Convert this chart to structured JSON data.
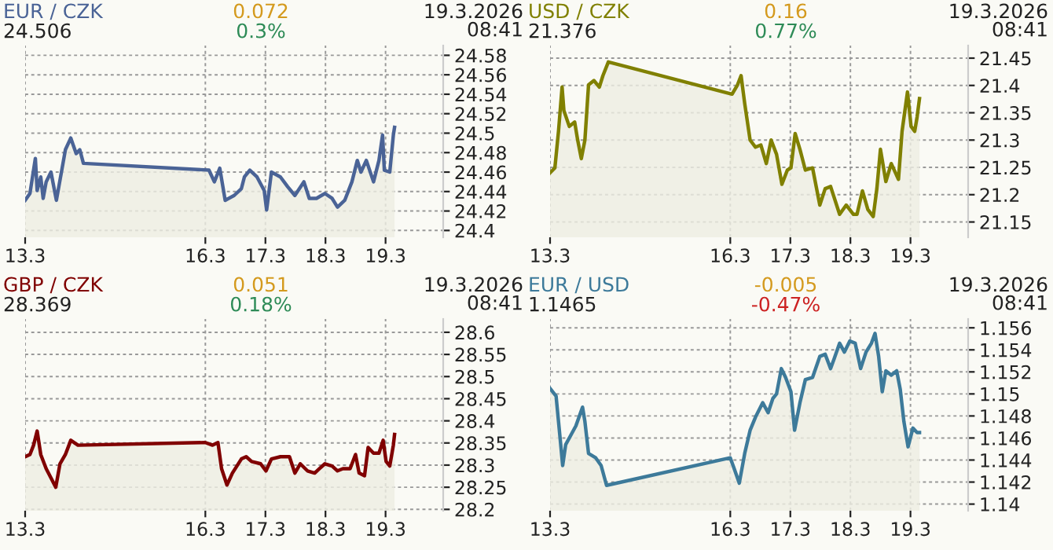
{
  "chart_data": [
    {
      "type": "area",
      "title": "EUR / CZK",
      "annotations": [
        "24.506",
        "0.072",
        "0.3%",
        "19.3.2026\n08:41"
      ],
      "grid": true,
      "xlim": [
        "2026-03-13T00:00",
        "2026-03-19T23:02"
      ],
      "xticks": [
        {
          "value": "2026-03-13",
          "label": "13.3"
        },
        {
          "value": "2026-03-16",
          "label": "16.3"
        },
        {
          "value": "2026-03-17",
          "label": "17.3"
        },
        {
          "value": "2026-03-18",
          "label": "18.3"
        },
        {
          "value": "2026-03-19",
          "label": "19.3"
        }
      ],
      "ylim": [
        24.393,
        24.59
      ],
      "yticks": [
        24.4,
        24.42,
        24.44,
        24.46,
        24.48,
        24.5,
        24.52,
        24.54,
        24.56,
        24.58
      ],
      "series": [
        {
          "color": "#4a6396",
          "x": [
            "2026-03-13T00:00",
            "2026-03-13T01:55",
            "2026-03-13T04:05",
            "2026-03-13T04:48",
            "2026-03-13T06:14",
            "2026-03-13T07:12",
            "2026-03-13T08:24",
            "2026-03-13T10:19",
            "2026-03-13T12:29",
            "2026-03-13T14:38",
            "2026-03-13T16:05",
            "2026-03-13T18:14",
            "2026-03-13T20:24",
            "2026-03-13T21:50",
            "2026-03-13T23:17",
            "2026-03-16T01:26",
            "2026-03-16T03:36",
            "2026-03-16T05:46",
            "2026-03-16T07:55",
            "2026-03-16T11:31",
            "2026-03-16T14:24",
            "2026-03-16T15:36",
            "2026-03-16T17:46",
            "2026-03-16T20:38",
            "2026-03-16T23:31",
            "2026-03-17T00:29",
            "2026-03-17T02:24",
            "2026-03-17T06:00",
            "2026-03-17T08:53",
            "2026-03-17T11:46",
            "2026-03-17T15:22",
            "2026-03-17T17:31",
            "2026-03-17T20:24",
            "2026-03-17T23:46",
            "2026-03-18T02:38",
            "2026-03-18T04:48",
            "2026-03-18T07:41",
            "2026-03-18T10:34",
            "2026-03-18T12:43",
            "2026-03-18T14:10",
            "2026-03-18T16:19",
            "2026-03-18T19:12",
            "2026-03-18T21:22",
            "2026-03-18T22:48",
            "2026-03-18T23:31",
            "2026-03-19T01:41",
            "2026-03-19T03:07",
            "2026-03-19T03:36"
          ],
          "values": [
            24.431,
            24.438,
            24.474,
            24.441,
            24.455,
            24.433,
            24.45,
            24.46,
            24.431,
            24.462,
            24.483,
            24.495,
            24.479,
            24.483,
            24.469,
            24.462,
            24.45,
            24.464,
            24.431,
            24.436,
            24.443,
            24.455,
            24.462,
            24.455,
            24.441,
            24.421,
            24.46,
            24.455,
            24.445,
            24.436,
            24.45,
            24.433,
            24.433,
            24.438,
            24.433,
            24.424,
            24.431,
            24.45,
            24.472,
            24.46,
            24.472,
            24.45,
            24.472,
            24.498,
            24.462,
            24.46,
            24.498,
            24.506
          ]
        }
      ]
    },
    {
      "type": "area",
      "title": "USD / CZK",
      "annotations": [
        "21.376",
        "0.16",
        "0.77%",
        "19.3.2026\n08:41"
      ],
      "grid": true,
      "xlim": [
        "2026-03-13T00:00",
        "2026-03-19T23:02"
      ],
      "xticks": [
        {
          "value": "2026-03-13",
          "label": "13.3"
        },
        {
          "value": "2026-03-16",
          "label": "16.3"
        },
        {
          "value": "2026-03-17",
          "label": "17.3"
        },
        {
          "value": "2026-03-18",
          "label": "18.3"
        },
        {
          "value": "2026-03-19",
          "label": "19.3"
        }
      ],
      "ylim": [
        21.122,
        21.473
      ],
      "yticks": [
        21.15,
        21.2,
        21.25,
        21.3,
        21.35,
        21.4,
        21.45
      ],
      "series": [
        {
          "color": "#808000",
          "x": [
            "2026-03-13T00:00",
            "2026-03-13T01:55",
            "2026-03-13T03:22",
            "2026-03-13T04:48",
            "2026-03-13T05:31",
            "2026-03-13T07:41",
            "2026-03-13T09:50",
            "2026-03-13T11:02",
            "2026-03-13T12:29",
            "2026-03-13T13:55",
            "2026-03-13T15:22",
            "2026-03-13T17:31",
            "2026-03-13T19:41",
            "2026-03-13T21:07",
            "2026-03-13T23:17",
            "2026-03-16T00:43",
            "2026-03-16T02:53",
            "2026-03-16T04:19",
            "2026-03-16T05:46",
            "2026-03-16T07:55",
            "2026-03-16T10:05",
            "2026-03-16T12:14",
            "2026-03-16T14:24",
            "2026-03-16T16:19",
            "2026-03-16T18:29",
            "2026-03-16T20:38",
            "2026-03-16T22:48",
            "2026-03-17T00:14",
            "2026-03-17T01:55",
            "2026-03-17T03:50",
            "2026-03-17T06:00",
            "2026-03-17T08:53",
            "2026-03-17T11:46",
            "2026-03-17T13:55",
            "2026-03-17T16:05",
            "2026-03-17T19:41",
            "2026-03-17T22:19",
            "2026-03-18T01:12",
            "2026-03-18T02:38",
            "2026-03-18T04:48",
            "2026-03-18T06:58",
            "2026-03-18T09:07",
            "2026-03-18T10:34",
            "2026-03-18T12:00",
            "2026-03-18T14:10",
            "2026-03-18T16:19",
            "2026-03-18T19:12",
            "2026-03-18T20:38",
            "2026-03-18T22:48",
            "2026-03-19T00:14",
            "2026-03-19T01:41",
            "2026-03-19T02:38",
            "2026-03-19T03:36"
          ],
          "values": [
            21.24,
            21.249,
            21.316,
            21.397,
            21.354,
            21.325,
            21.333,
            21.3,
            21.266,
            21.3,
            21.401,
            21.409,
            21.397,
            21.418,
            21.443,
            21.384,
            21.401,
            21.418,
            21.367,
            21.3,
            21.287,
            21.291,
            21.257,
            21.3,
            21.274,
            21.219,
            21.245,
            21.249,
            21.312,
            21.283,
            21.245,
            21.249,
            21.181,
            21.211,
            21.215,
            21.164,
            21.181,
            21.164,
            21.164,
            21.207,
            21.173,
            21.16,
            21.211,
            21.283,
            21.224,
            21.257,
            21.228,
            21.316,
            21.388,
            21.325,
            21.316,
            21.342,
            21.376
          ]
        }
      ]
    },
    {
      "type": "area",
      "title": "GBP / CZK",
      "annotations": [
        "28.369",
        "0.051",
        "0.18%",
        "19.3.2026\n08:41"
      ],
      "grid": true,
      "xlim": [
        "2026-03-13T00:00",
        "2026-03-19T23:02"
      ],
      "xticks": [
        {
          "value": "2026-03-13",
          "label": "13.3"
        },
        {
          "value": "2026-03-16",
          "label": "16.3"
        },
        {
          "value": "2026-03-17",
          "label": "17.3"
        },
        {
          "value": "2026-03-18",
          "label": "18.3"
        },
        {
          "value": "2026-03-19",
          "label": "19.3"
        }
      ],
      "ylim": [
        28.197,
        28.63
      ],
      "yticks": [
        28.2,
        28.25,
        28.3,
        28.35,
        28.4,
        28.45,
        28.5,
        28.55,
        28.6
      ],
      "series": [
        {
          "color": "#800000",
          "x": [
            "2026-03-13T00:00",
            "2026-03-13T01:55",
            "2026-03-13T03:22",
            "2026-03-13T04:48",
            "2026-03-13T06:14",
            "2026-03-13T08:24",
            "2026-03-13T10:19",
            "2026-03-13T12:14",
            "2026-03-13T13:55",
            "2026-03-13T16:05",
            "2026-03-13T18:14",
            "2026-03-13T21:07",
            "2026-03-16T00:00",
            "2026-03-16T02:53",
            "2026-03-16T05:02",
            "2026-03-16T06:29",
            "2026-03-16T08:38",
            "2026-03-16T10:48",
            "2026-03-16T14:24",
            "2026-03-16T16:19",
            "2026-03-16T18:29",
            "2026-03-16T22:05",
            "2026-03-17T00:14",
            "2026-03-17T02:24",
            "2026-03-17T06:00",
            "2026-03-17T09:36",
            "2026-03-17T11:46",
            "2026-03-17T13:55",
            "2026-03-17T16:48",
            "2026-03-17T19:41",
            "2026-03-17T21:36",
            "2026-03-17T23:46",
            "2026-03-18T02:38",
            "2026-03-18T04:48",
            "2026-03-18T06:58",
            "2026-03-18T09:50",
            "2026-03-18T12:00",
            "2026-03-18T13:26",
            "2026-03-18T15:36",
            "2026-03-18T17:02",
            "2026-03-18T19:12",
            "2026-03-18T21:22",
            "2026-03-18T23:02",
            "2026-03-19T00:14",
            "2026-03-19T01:41",
            "2026-03-19T03:07",
            "2026-03-19T03:36"
          ],
          "values": [
            28.319,
            28.324,
            28.345,
            28.377,
            28.324,
            28.292,
            28.271,
            28.25,
            28.303,
            28.324,
            28.356,
            28.345,
            28.351,
            28.345,
            28.351,
            28.292,
            28.255,
            28.282,
            28.314,
            28.319,
            28.308,
            28.303,
            28.287,
            28.314,
            28.319,
            28.319,
            28.282,
            28.303,
            28.287,
            28.282,
            28.292,
            28.303,
            28.298,
            28.287,
            28.292,
            28.292,
            28.324,
            28.282,
            28.276,
            28.34,
            28.327,
            28.327,
            28.356,
            28.308,
            28.298,
            28.345,
            28.369
          ]
        }
      ]
    },
    {
      "type": "area",
      "title": "EUR / USD",
      "annotations": [
        "1.1465",
        "-0.005",
        "-0.47%",
        "19.3.2026\n08:41"
      ],
      "grid": true,
      "xlim": [
        "2026-03-13T00:00",
        "2026-03-19T23:02"
      ],
      "xticks": [
        {
          "value": "2026-03-13",
          "label": "13.3"
        },
        {
          "value": "2026-03-16",
          "label": "16.3"
        },
        {
          "value": "2026-03-17",
          "label": "17.3"
        },
        {
          "value": "2026-03-18",
          "label": "18.3"
        },
        {
          "value": "2026-03-19",
          "label": "19.3"
        }
      ],
      "ylim": [
        1.1394,
        1.1568
      ],
      "yticks": [
        1.14,
        1.142,
        1.144,
        1.146,
        1.148,
        1.15,
        1.152,
        1.154,
        1.156
      ],
      "series": [
        {
          "color": "#3d7a9a",
          "x": [
            "2026-03-13T00:00",
            "2026-03-13T02:24",
            "2026-03-13T04:05",
            "2026-03-13T05:02",
            "2026-03-13T06:14",
            "2026-03-13T08:24",
            "2026-03-13T10:19",
            "2026-03-13T12:58",
            "2026-03-13T13:55",
            "2026-03-13T15:22",
            "2026-03-13T18:14",
            "2026-03-13T20:24",
            "2026-03-13T22:34",
            "2026-03-16T00:00",
            "2026-03-16T01:26",
            "2026-03-16T03:36",
            "2026-03-16T05:46",
            "2026-03-16T07:55",
            "2026-03-16T10:05",
            "2026-03-16T12:58",
            "2026-03-16T15:07",
            "2026-03-16T17:02",
            "2026-03-16T18:29",
            "2026-03-16T20:24",
            "2026-03-16T22:05",
            "2026-03-17T00:14",
            "2026-03-17T01:41",
            "2026-03-17T03:50",
            "2026-03-17T06:00",
            "2026-03-17T08:53",
            "2026-03-17T11:46",
            "2026-03-17T13:55",
            "2026-03-17T16:05",
            "2026-03-17T17:31",
            "2026-03-17T19:41",
            "2026-03-17T21:36",
            "2026-03-17T23:46",
            "2026-03-18T01:55",
            "2026-03-18T04:05",
            "2026-03-18T06:14",
            "2026-03-18T08:24",
            "2026-03-18T09:50",
            "2026-03-18T11:17",
            "2026-03-18T12:43",
            "2026-03-18T14:10",
            "2026-03-18T16:19",
            "2026-03-18T18:29",
            "2026-03-18T19:55",
            "2026-03-18T21:22",
            "2026-03-18T23:02",
            "2026-03-19T00:58",
            "2026-03-19T02:38",
            "2026-03-19T03:36"
          ],
          "values": [
            1.1505,
            1.1498,
            1.1458,
            1.1435,
            1.1454,
            1.1463,
            1.1471,
            1.1488,
            1.1475,
            1.1446,
            1.1442,
            1.1435,
            1.1417,
            1.1442,
            1.1433,
            1.1419,
            1.1446,
            1.1467,
            1.1479,
            1.1492,
            1.1483,
            1.1496,
            1.15,
            1.1523,
            1.1515,
            1.1502,
            1.1467,
            1.1492,
            1.1513,
            1.1515,
            1.1534,
            1.1536,
            1.1523,
            1.1532,
            1.1546,
            1.1538,
            1.1548,
            1.1546,
            1.1523,
            1.1538,
            1.1546,
            1.1555,
            1.1534,
            1.1502,
            1.1521,
            1.1517,
            1.1521,
            1.1504,
            1.1475,
            1.1452,
            1.1469,
            1.1465,
            1.1465
          ]
        }
      ]
    }
  ]
}
